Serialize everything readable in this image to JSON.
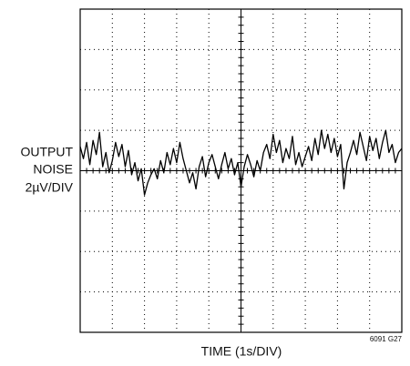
{
  "chart_data": {
    "type": "line",
    "ylabel": [
      "OUTPUT",
      "NOISE",
      "2µV/DIV"
    ],
    "xlabel": "TIME (1s/DIV)",
    "annotation": "6091 G27",
    "xlim": [
      0,
      10
    ],
    "xticks": [
      0,
      1,
      2,
      3,
      4,
      5,
      6,
      7,
      8,
      9,
      10
    ],
    "ylim": [
      -8,
      8
    ],
    "yticks": [
      -8,
      -6,
      -4,
      -2,
      0,
      2,
      4,
      6,
      8
    ],
    "grid": true,
    "series": [
      {
        "color": "#000000",
        "x": [
          0,
          0.1,
          0.2,
          0.3,
          0.4,
          0.5,
          0.6,
          0.7,
          0.8,
          0.9,
          1,
          1.1,
          1.2,
          1.3,
          1.4,
          1.5,
          1.6,
          1.7,
          1.8,
          1.9,
          2,
          2.1,
          2.2,
          2.3,
          2.4,
          2.5,
          2.6,
          2.7,
          2.8,
          2.9,
          3,
          3.1,
          3.2,
          3.3,
          3.4,
          3.5,
          3.6,
          3.7,
          3.8,
          3.9,
          4,
          4.1,
          4.2,
          4.3,
          4.4,
          4.5,
          4.6,
          4.7,
          4.8,
          4.9,
          5,
          5.1,
          5.2,
          5.3,
          5.4,
          5.5,
          5.6,
          5.7,
          5.8,
          5.9,
          6,
          6.1,
          6.2,
          6.3,
          6.4,
          6.5,
          6.6,
          6.7,
          6.8,
          6.9,
          7,
          7.1,
          7.2,
          7.3,
          7.4,
          7.5,
          7.6,
          7.7,
          7.8,
          7.9,
          8,
          8.1,
          8.2,
          8.3,
          8.4,
          8.5,
          8.6,
          8.7,
          8.8,
          8.9,
          9,
          9.1,
          9.2,
          9.3,
          9.4,
          9.5,
          9.6,
          9.7,
          9.8,
          9.9,
          10
        ],
        "values": [
          1.2,
          0.6,
          1.4,
          0.3,
          1.5,
          0.8,
          1.9,
          0.2,
          0.9,
          -0.1,
          0.5,
          1.4,
          0.7,
          1.3,
          0.2,
          1.0,
          -0.2,
          0.4,
          -0.5,
          0.1,
          -1.2,
          -0.6,
          -0.2,
          0.1,
          -0.4,
          0.5,
          -0.1,
          0.9,
          0.3,
          1.1,
          0.4,
          1.4,
          0.6,
          0.0,
          -0.6,
          -0.1,
          -0.9,
          0.2,
          0.7,
          -0.3,
          0.4,
          0.8,
          0.2,
          -0.4,
          0.3,
          0.9,
          0.1,
          0.6,
          -0.2,
          0.4,
          -0.8,
          0.2,
          0.8,
          0.3,
          -0.3,
          0.5,
          0.0,
          0.9,
          1.3,
          0.6,
          1.8,
          0.9,
          1.5,
          0.4,
          1.1,
          0.6,
          1.7,
          0.3,
          0.9,
          0.2,
          0.7,
          1.2,
          0.5,
          1.6,
          0.8,
          2.0,
          1.1,
          1.8,
          0.9,
          1.6,
          0.7,
          1.3,
          -0.9,
          0.4,
          0.9,
          1.5,
          0.8,
          1.9,
          1.2,
          0.5,
          1.7,
          1.0,
          1.6,
          0.6,
          1.4,
          2.0,
          0.9,
          1.3,
          0.4,
          0.9,
          1.1
        ]
      }
    ]
  }
}
